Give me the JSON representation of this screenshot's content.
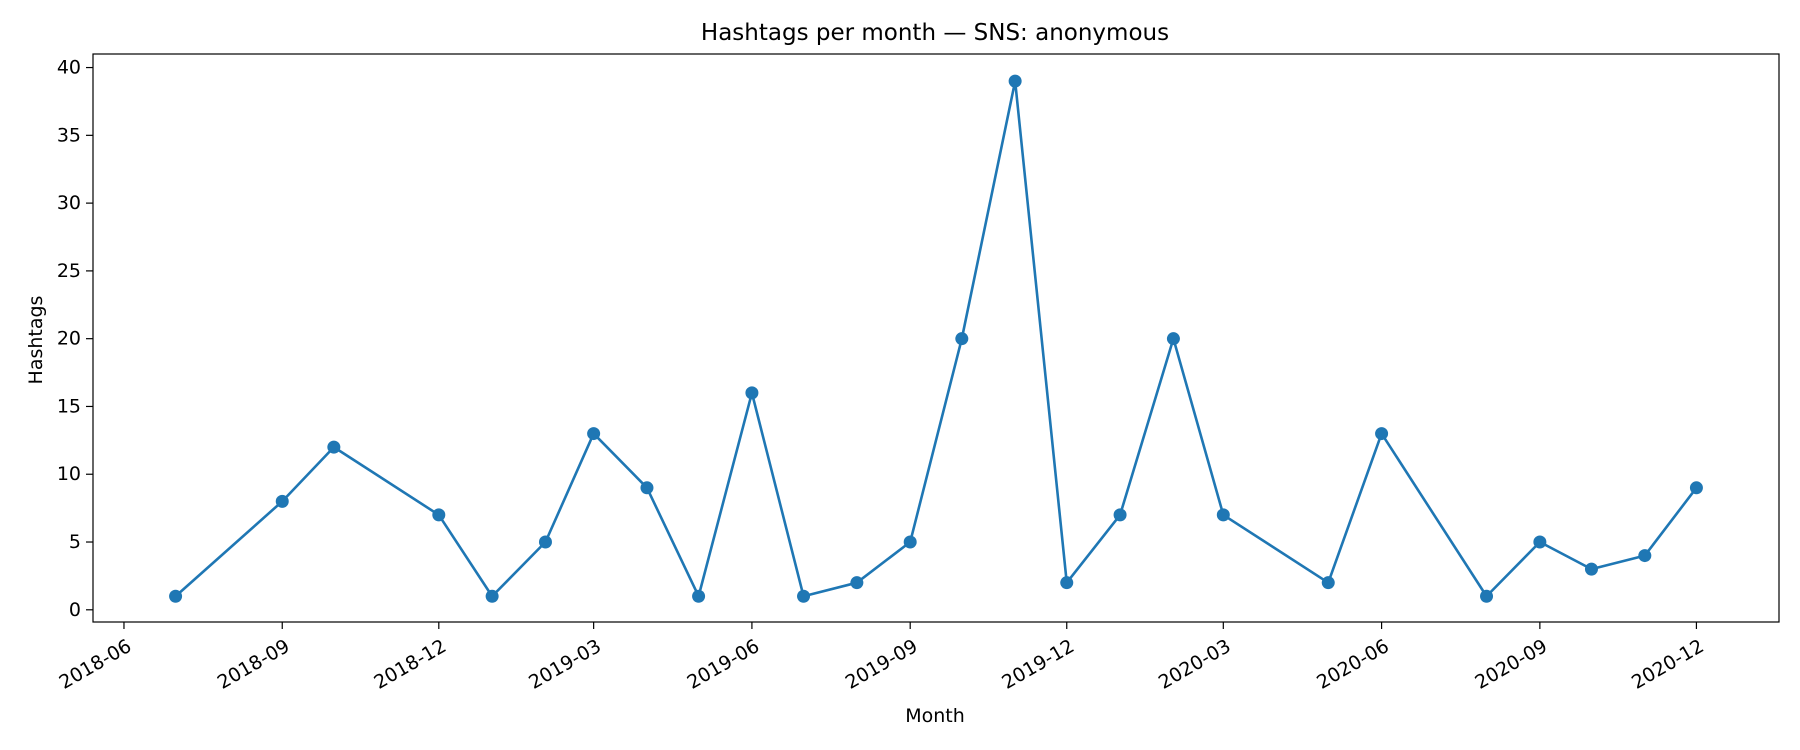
{
  "chart_data": {
    "type": "line",
    "title": "Hashtags per month — SNS: anonymous",
    "xlabel": "Month",
    "ylabel": "Hashtags",
    "x": [
      "2018-07",
      "2018-09",
      "2018-10",
      "2018-12",
      "2019-01",
      "2019-02",
      "2019-03",
      "2019-04",
      "2019-05",
      "2019-06",
      "2019-07",
      "2019-08",
      "2019-09",
      "2019-10",
      "2019-11",
      "2019-12",
      "2020-01",
      "2020-02",
      "2020-03",
      "2020-05",
      "2020-06",
      "2020-08",
      "2020-09",
      "2020-10",
      "2020-11",
      "2020-12"
    ],
    "series": [
      {
        "values": [
          1,
          8,
          12,
          7,
          1,
          5,
          13,
          9,
          1,
          16,
          1,
          2,
          5,
          20,
          39,
          2,
          7,
          20,
          7,
          2,
          13,
          1,
          5,
          3,
          4,
          9
        ]
      }
    ],
    "x_ticks": [
      "2018-06",
      "2018-09",
      "2018-12",
      "2019-03",
      "2019-06",
      "2019-09",
      "2019-12",
      "2020-03",
      "2020-06",
      "2020-09",
      "2020-12"
    ],
    "y_ticks": [
      "0",
      "5",
      "10",
      "15",
      "20",
      "25",
      "30",
      "35",
      "40"
    ],
    "xlim": [
      "2018-05-14",
      "2021-01-18"
    ],
    "ylim": [
      -0.9,
      41
    ],
    "grid": false,
    "legend": false,
    "colors": {
      "series": "#1f77b4"
    }
  }
}
